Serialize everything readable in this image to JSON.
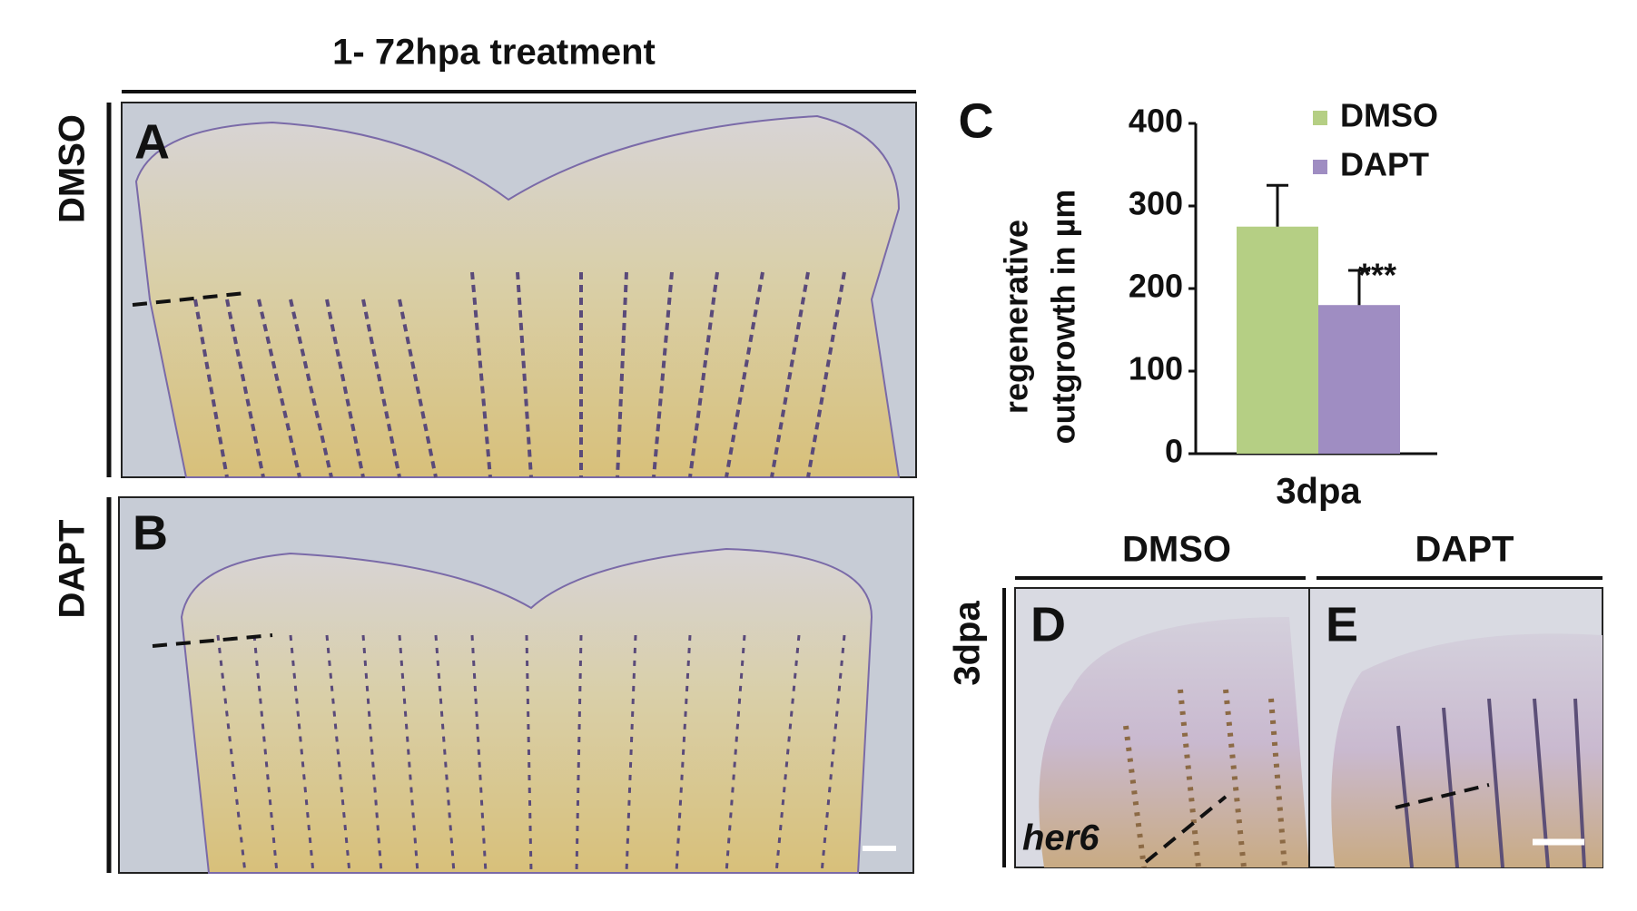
{
  "header": {
    "title": "1- 72hpa treatment"
  },
  "panels": {
    "A": "A",
    "B": "B",
    "D": "D",
    "E": "E",
    "row_A": "DMSO",
    "row_B": "DAPT",
    "col_D": "DMSO",
    "col_E": "DAPT",
    "row_DE": "3dpa",
    "gene": "her6"
  },
  "chart_data": {
    "type": "bar",
    "panel_label": "C",
    "y_label": [
      "regenerative",
      "outgrowth in µm"
    ],
    "categories": [
      "3dpa"
    ],
    "series": [
      {
        "name": "DMSO",
        "color": "#b5cf84",
        "values": [
          275
        ],
        "errors": [
          50
        ]
      },
      {
        "name": "DAPT",
        "color": "#9f8dc2",
        "values": [
          180
        ],
        "errors": [
          42
        ],
        "annotation": "***"
      }
    ],
    "ylim": [
      0,
      400
    ],
    "yticks": [
      0,
      100,
      200,
      300,
      400
    ]
  }
}
